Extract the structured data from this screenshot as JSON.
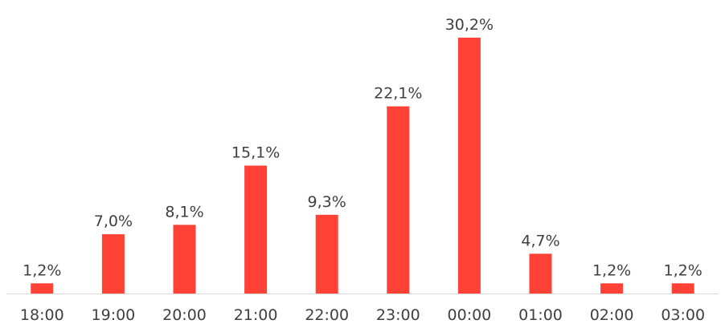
{
  "chart_data": {
    "type": "bar",
    "categories": [
      "18:00",
      "19:00",
      "20:00",
      "21:00",
      "22:00",
      "23:00",
      "00:00",
      "01:00",
      "02:00",
      "03:00"
    ],
    "values": [
      1.2,
      7.0,
      8.1,
      15.1,
      9.3,
      22.1,
      30.2,
      4.7,
      1.2,
      1.2
    ],
    "data_labels": [
      "1,2%",
      "7,0%",
      "8,1%",
      "15,1%",
      "9,3%",
      "22,1%",
      "30,2%",
      "4,7%",
      "1,2%",
      "1,2%"
    ],
    "title": "",
    "xlabel": "",
    "ylabel": "",
    "ylim": [
      0,
      30.2
    ],
    "grid": false,
    "legend": "none",
    "bar_color": "#FF4136",
    "baseline_color": "#d9d9d9",
    "text_color": "#404040"
  }
}
